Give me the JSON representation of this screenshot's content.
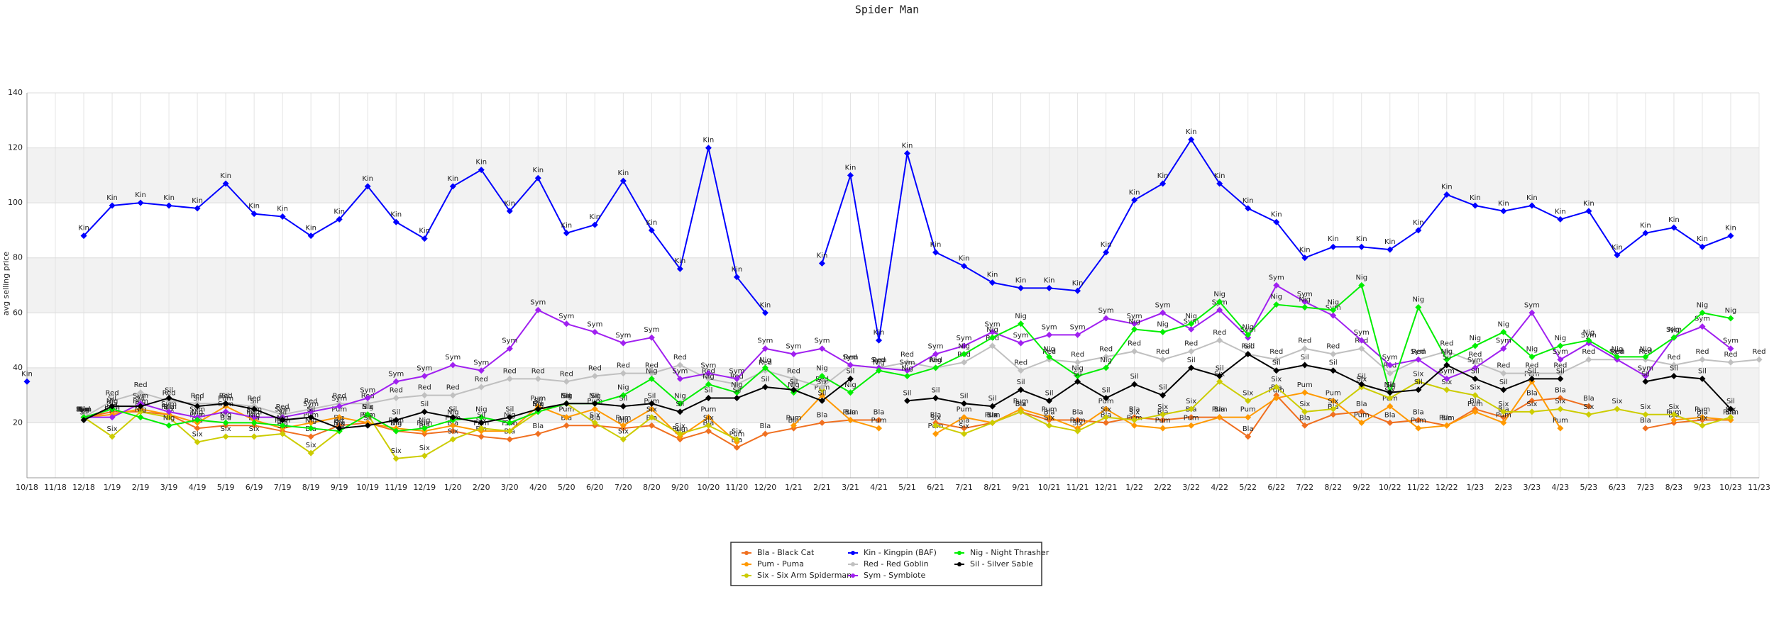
{
  "chart_data": {
    "type": "line",
    "title": "Spider Man",
    "y_label": "avg selling price",
    "categories": [
      "10/18",
      "11/18",
      "12/18",
      "1/19",
      "2/19",
      "3/19",
      "4/19",
      "5/19",
      "6/19",
      "7/19",
      "8/19",
      "9/19",
      "10/19",
      "11/19",
      "12/19",
      "1/20",
      "2/20",
      "3/20",
      "4/20",
      "5/20",
      "6/20",
      "7/20",
      "8/20",
      "9/20",
      "10/20",
      "11/20",
      "12/20",
      "1/21",
      "2/21",
      "3/21",
      "4/21",
      "5/21",
      "6/21",
      "7/21",
      "8/21",
      "9/21",
      "10/21",
      "11/21",
      "12/21",
      "1/22",
      "2/22",
      "3/22",
      "4/22",
      "5/22",
      "6/22",
      "7/22",
      "8/22",
      "9/22",
      "10/22",
      "11/22",
      "12/22",
      "1/23",
      "2/23",
      "3/23",
      "4/23",
      "5/23",
      "6/23",
      "7/23",
      "8/23",
      "9/23",
      "10/23",
      "11/23"
    ],
    "ylim": [
      0,
      140
    ],
    "yticks": [
      20,
      40,
      60,
      80,
      100,
      120,
      140
    ],
    "grid": true,
    "legend": "bottom",
    "series": [
      {
        "name": "Bla - Black Cat",
        "label": "Bla",
        "color": "#f07020",
        "values": [
          null,
          null,
          22,
          24,
          24,
          23,
          18,
          19,
          19,
          17,
          15,
          19,
          20,
          17,
          16,
          17,
          15,
          14,
          16,
          19,
          19,
          18,
          19,
          14,
          17,
          11,
          16,
          18,
          20,
          21,
          21,
          null,
          20,
          18,
          20,
          24,
          21,
          21,
          20,
          22,
          21,
          22,
          22,
          15,
          30,
          19,
          23,
          24,
          20,
          21,
          19,
          25,
          22,
          28,
          29,
          26,
          null,
          18,
          20,
          21,
          21,
          null
        ]
      },
      {
        "name": "Pum - Puma",
        "label": "Pum",
        "color": "#ff9900",
        "values": [
          null,
          null,
          22,
          23,
          25,
          23,
          20,
          26,
          21,
          18,
          20,
          22,
          20,
          18,
          17,
          19,
          17,
          17,
          26,
          22,
          25,
          19,
          25,
          15,
          22,
          13,
          null,
          19,
          30,
          21,
          18,
          null,
          16,
          22,
          20,
          25,
          22,
          18,
          25,
          19,
          18,
          19,
          22,
          22,
          29,
          31,
          28,
          20,
          26,
          18,
          19,
          24,
          20,
          35,
          18,
          null,
          null,
          null,
          21,
          22,
          21,
          null
        ]
      },
      {
        "name": "Six - Six Arm Spiderman",
        "label": "Six",
        "color": "#cccc00",
        "values": [
          null,
          null,
          22,
          15,
          24,
          22,
          13,
          15,
          15,
          16,
          9,
          17,
          23,
          7,
          8,
          14,
          18,
          17,
          24,
          27,
          20,
          14,
          22,
          16,
          19,
          14,
          null,
          null,
          32,
          null,
          null,
          null,
          19,
          16,
          20,
          24,
          19,
          17,
          22,
          21,
          23,
          25,
          35,
          28,
          33,
          24,
          25,
          33,
          29,
          35,
          32,
          30,
          24,
          24,
          25,
          23,
          25,
          23,
          23,
          19,
          22,
          null
        ]
      },
      {
        "name": "Kin - Kingpin (BAF)",
        "label": "Kin",
        "color": "#0000ff",
        "values": [
          35,
          null,
          88,
          99,
          100,
          99,
          98,
          107,
          96,
          95,
          88,
          94,
          106,
          93,
          87,
          106,
          112,
          97,
          109,
          89,
          92,
          108,
          90,
          76,
          120,
          73,
          60,
          null,
          78,
          110,
          50,
          118,
          82,
          77,
          71,
          69,
          69,
          68,
          82,
          101,
          107,
          123,
          107,
          98,
          93,
          80,
          84,
          84,
          83,
          90,
          103,
          99,
          97,
          99,
          94,
          97,
          81,
          89,
          91,
          84,
          88,
          null
        ]
      },
      {
        "name": "Red - Red Goblin",
        "label": "Red",
        "color": "#c0c0c0",
        "values": [
          null,
          null,
          22,
          28,
          31,
          28,
          27,
          27,
          26,
          23,
          25,
          27,
          27,
          29,
          30,
          30,
          33,
          36,
          36,
          35,
          37,
          38,
          38,
          41,
          36,
          34,
          39,
          36,
          33,
          41,
          40,
          42,
          40,
          42,
          48,
          39,
          43,
          42,
          44,
          46,
          43,
          46,
          50,
          45,
          43,
          47,
          45,
          47,
          38,
          43,
          46,
          42,
          38,
          38,
          38,
          43,
          43,
          43,
          41,
          43,
          42,
          43
        ]
      },
      {
        "name": "Sym - Symbiote",
        "label": "Sym",
        "color": "#a020f0",
        "values": [
          null,
          null,
          22,
          22,
          27,
          24,
          22,
          24,
          22,
          22,
          24,
          26,
          29,
          35,
          37,
          41,
          39,
          47,
          61,
          56,
          53,
          49,
          51,
          36,
          38,
          36,
          47,
          45,
          47,
          41,
          40,
          39,
          45,
          48,
          53,
          49,
          52,
          52,
          58,
          56,
          60,
          54,
          61,
          51,
          70,
          64,
          59,
          50,
          41,
          43,
          36,
          40,
          47,
          60,
          43,
          49,
          43,
          37,
          51,
          55,
          47,
          null
        ]
      },
      {
        "name": "Nig - Night Thrasher",
        "label": "Nig",
        "color": "#00ee00",
        "values": [
          null,
          null,
          22,
          25,
          22,
          19,
          21,
          20,
          20,
          19,
          18,
          17,
          23,
          17,
          18,
          21,
          22,
          20,
          24,
          27,
          27,
          30,
          36,
          27,
          34,
          31,
          40,
          31,
          37,
          31,
          39,
          37,
          40,
          45,
          51,
          56,
          44,
          37,
          40,
          54,
          53,
          56,
          64,
          52,
          63,
          62,
          61,
          70,
          31,
          62,
          43,
          48,
          53,
          44,
          48,
          50,
          44,
          44,
          51,
          60,
          58,
          null
        ]
      },
      {
        "name": "Sil - Silver Sable",
        "label": "Sil",
        "color": "#000000",
        "values": [
          null,
          null,
          21,
          26,
          26,
          29,
          26,
          27,
          25,
          21,
          22,
          18,
          19,
          21,
          24,
          22,
          20,
          22,
          25,
          27,
          27,
          26,
          27,
          24,
          29,
          29,
          33,
          32,
          28,
          36,
          null,
          28,
          29,
          27,
          26,
          32,
          28,
          35,
          29,
          34,
          30,
          40,
          37,
          45,
          39,
          41,
          39,
          34,
          31,
          32,
          41,
          36,
          32,
          36,
          36,
          null,
          null,
          35,
          37,
          36,
          25,
          null
        ]
      }
    ]
  }
}
